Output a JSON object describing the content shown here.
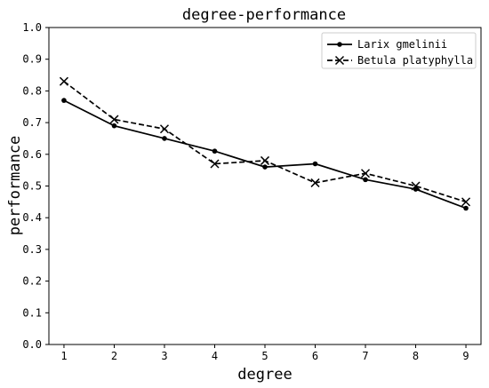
{
  "chart_data": {
    "type": "line",
    "title": "degree-performance",
    "xlabel": "degree",
    "ylabel": "performance",
    "x": [
      1,
      2,
      3,
      4,
      5,
      6,
      7,
      8,
      9
    ],
    "xlim": [
      0.7,
      9.3
    ],
    "ylim": [
      0.0,
      1.0
    ],
    "xticks": [
      "1",
      "2",
      "3",
      "4",
      "5",
      "6",
      "7",
      "8",
      "9"
    ],
    "yticks": [
      "0.0",
      "0.1",
      "0.2",
      "0.3",
      "0.4",
      "0.5",
      "0.6",
      "0.7",
      "0.8",
      "0.9",
      "1.0"
    ],
    "grid": false,
    "legend_position": "top-right",
    "series": [
      {
        "name": "Larix gmelinii",
        "values": [
          0.77,
          0.69,
          0.65,
          0.61,
          0.56,
          0.57,
          0.52,
          0.49,
          0.43
        ],
        "line_style": "solid",
        "marker": "dot",
        "color": "#000000"
      },
      {
        "name": "Betula platyphylla",
        "values": [
          0.83,
          0.71,
          0.68,
          0.57,
          0.58,
          0.51,
          0.54,
          0.5,
          0.45
        ],
        "line_style": "dashed",
        "marker": "x",
        "color": "#000000"
      }
    ]
  }
}
